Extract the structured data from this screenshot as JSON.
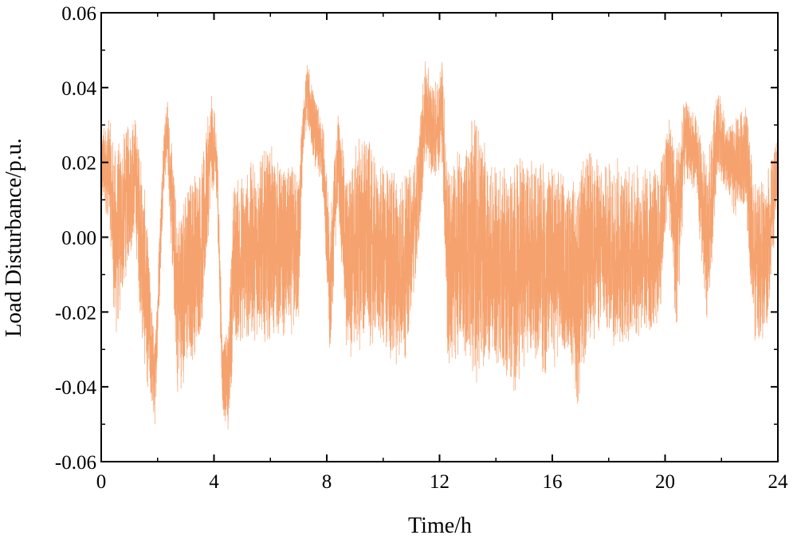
{
  "chart_data": {
    "type": "line",
    "title": "",
    "xlabel": "Time/h",
    "ylabel": "Load Disturbance/p.u.",
    "xlim": [
      0,
      24
    ],
    "ylim": [
      -0.06,
      0.06
    ],
    "xticks": [
      0,
      4,
      8,
      12,
      16,
      20,
      24
    ],
    "xtick_labels": [
      "0",
      "4",
      "8",
      "12",
      "16",
      "20",
      "24"
    ],
    "yticks": [
      -0.06,
      -0.04,
      -0.02,
      0.0,
      0.02,
      0.04,
      0.06
    ],
    "ytick_labels": [
      "-0.06",
      "-0.04",
      "-0.02",
      "0.00",
      "0.02",
      "0.04",
      "0.06"
    ],
    "grid": false,
    "legend": "none",
    "series": [
      {
        "color": "#f5a26e",
        "sampling": "approx. 1 sample per 10 s; envelope read from figure",
        "envelope": [
          {
            "x": 0.0,
            "min": 0.008,
            "max": 0.03
          },
          {
            "x": 0.3,
            "min": 0.004,
            "max": 0.032
          },
          {
            "x": 0.5,
            "min": -0.031,
            "max": 0.025
          },
          {
            "x": 0.9,
            "min": -0.01,
            "max": 0.03
          },
          {
            "x": 1.2,
            "min": 0.0,
            "max": 0.034
          },
          {
            "x": 1.5,
            "min": -0.035,
            "max": 0.018
          },
          {
            "x": 1.9,
            "min": -0.052,
            "max": -0.028
          },
          {
            "x": 2.2,
            "min": 0.01,
            "max": 0.028
          },
          {
            "x": 2.35,
            "min": 0.02,
            "max": 0.038
          },
          {
            "x": 2.7,
            "min": -0.043,
            "max": 0.008
          },
          {
            "x": 3.2,
            "min": -0.035,
            "max": 0.019
          },
          {
            "x": 3.6,
            "min": -0.025,
            "max": 0.022
          },
          {
            "x": 3.9,
            "min": 0.012,
            "max": 0.039
          },
          {
            "x": 4.1,
            "min": 0.01,
            "max": 0.03
          },
          {
            "x": 4.3,
            "min": -0.047,
            "max": -0.027
          },
          {
            "x": 4.5,
            "min": -0.053,
            "max": -0.025
          },
          {
            "x": 4.7,
            "min": -0.03,
            "max": 0.016
          },
          {
            "x": 5.5,
            "min": -0.028,
            "max": 0.022
          },
          {
            "x": 6.0,
            "min": -0.028,
            "max": 0.025
          },
          {
            "x": 6.5,
            "min": -0.027,
            "max": 0.019
          },
          {
            "x": 7.0,
            "min": -0.026,
            "max": 0.02
          },
          {
            "x": 7.15,
            "min": 0.02,
            "max": 0.034
          },
          {
            "x": 7.3,
            "min": 0.03,
            "max": 0.048
          },
          {
            "x": 7.6,
            "min": 0.018,
            "max": 0.037
          },
          {
            "x": 7.9,
            "min": 0.01,
            "max": 0.03
          },
          {
            "x": 8.1,
            "min": -0.037,
            "max": 0.005
          },
          {
            "x": 8.4,
            "min": 0.01,
            "max": 0.035
          },
          {
            "x": 8.7,
            "min": -0.034,
            "max": 0.018
          },
          {
            "x": 9.3,
            "min": -0.03,
            "max": 0.031
          },
          {
            "x": 9.8,
            "min": -0.029,
            "max": 0.019
          },
          {
            "x": 10.3,
            "min": -0.035,
            "max": 0.021
          },
          {
            "x": 10.8,
            "min": -0.033,
            "max": 0.017
          },
          {
            "x": 11.2,
            "min": -0.008,
            "max": 0.024
          },
          {
            "x": 11.5,
            "min": 0.02,
            "max": 0.048
          },
          {
            "x": 11.8,
            "min": 0.015,
            "max": 0.04
          },
          {
            "x": 12.1,
            "min": 0.02,
            "max": 0.05
          },
          {
            "x": 12.3,
            "min": -0.039,
            "max": 0.02
          },
          {
            "x": 12.8,
            "min": -0.03,
            "max": 0.025
          },
          {
            "x": 13.3,
            "min": -0.04,
            "max": 0.035
          },
          {
            "x": 13.8,
            "min": -0.033,
            "max": 0.019
          },
          {
            "x": 14.3,
            "min": -0.037,
            "max": 0.02
          },
          {
            "x": 14.6,
            "min": -0.044,
            "max": 0.022
          },
          {
            "x": 15.2,
            "min": -0.03,
            "max": 0.021
          },
          {
            "x": 15.7,
            "min": -0.038,
            "max": 0.021
          },
          {
            "x": 16.2,
            "min": -0.035,
            "max": 0.02
          },
          {
            "x": 16.6,
            "min": -0.03,
            "max": 0.015
          },
          {
            "x": 16.9,
            "min": -0.047,
            "max": 0.018
          },
          {
            "x": 17.3,
            "min": -0.03,
            "max": 0.025
          },
          {
            "x": 17.8,
            "min": -0.026,
            "max": 0.02
          },
          {
            "x": 18.3,
            "min": -0.03,
            "max": 0.023
          },
          {
            "x": 18.8,
            "min": -0.028,
            "max": 0.02
          },
          {
            "x": 19.3,
            "min": -0.028,
            "max": 0.02
          },
          {
            "x": 19.8,
            "min": -0.025,
            "max": 0.019
          },
          {
            "x": 20.1,
            "min": 0.01,
            "max": 0.032
          },
          {
            "x": 20.4,
            "min": -0.03,
            "max": 0.028
          },
          {
            "x": 20.7,
            "min": 0.015,
            "max": 0.037
          },
          {
            "x": 21.1,
            "min": 0.012,
            "max": 0.033
          },
          {
            "x": 21.5,
            "min": -0.028,
            "max": 0.02
          },
          {
            "x": 21.85,
            "min": 0.018,
            "max": 0.041
          },
          {
            "x": 22.2,
            "min": 0.01,
            "max": 0.03
          },
          {
            "x": 22.5,
            "min": 0.005,
            "max": 0.032
          },
          {
            "x": 22.85,
            "min": 0.008,
            "max": 0.036
          },
          {
            "x": 23.2,
            "min": -0.03,
            "max": 0.015
          },
          {
            "x": 23.6,
            "min": -0.026,
            "max": 0.018
          },
          {
            "x": 24.0,
            "min": 0.01,
            "max": 0.027
          }
        ]
      }
    ]
  }
}
